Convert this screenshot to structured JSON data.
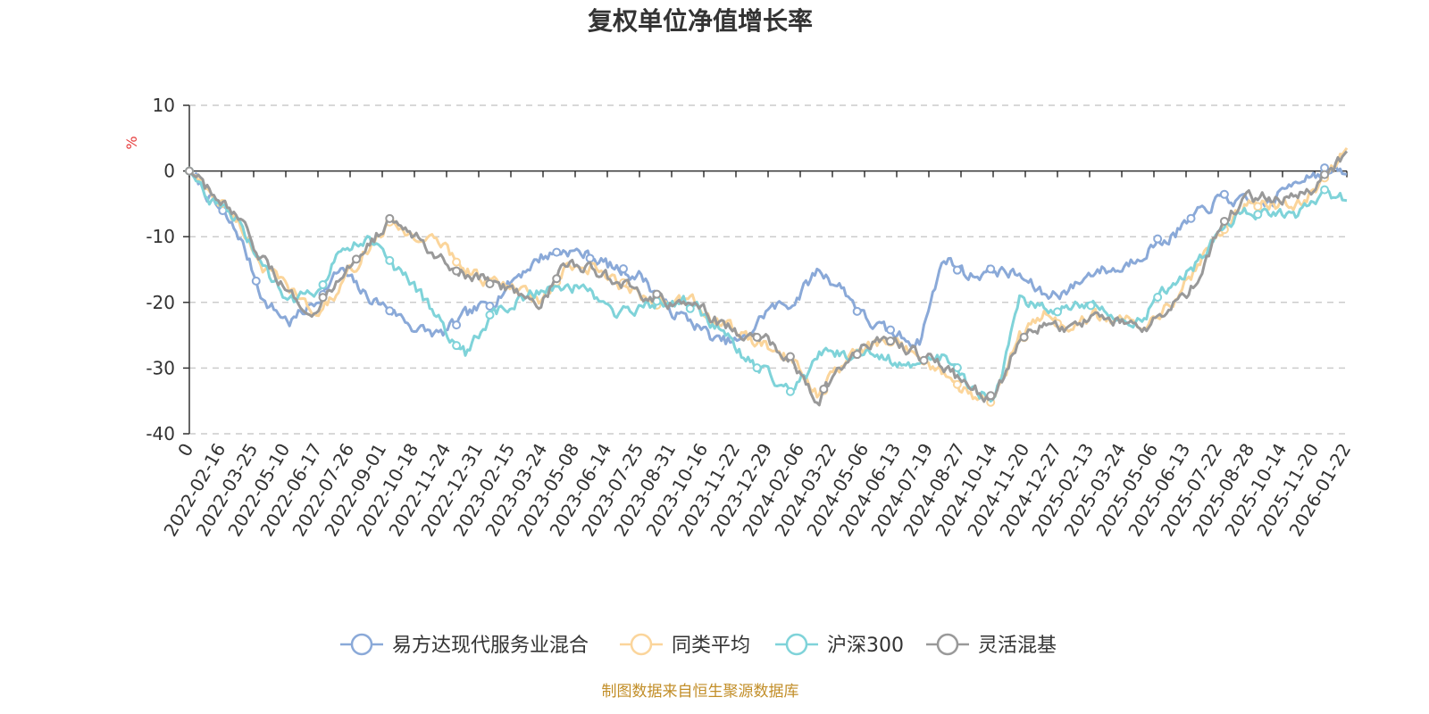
{
  "chart_data": {
    "type": "line",
    "title": "复权单位净值增长率",
    "ylabel": "%",
    "ylim": [
      -40,
      10
    ],
    "yticks": [
      10,
      0,
      -10,
      -20,
      -30,
      -40
    ],
    "xticks": [
      "0",
      "2022-02-16",
      "2022-03-25",
      "2022-05-10",
      "2022-06-17",
      "2022-07-26",
      "2022-09-01",
      "2022-10-18",
      "2022-11-24",
      "2022-12-31",
      "2023-02-15",
      "2023-03-24",
      "2023-05-08",
      "2023-06-14",
      "2023-07-25",
      "2023-08-31",
      "2023-10-16",
      "2023-11-22",
      "2023-12-29",
      "2024-02-06",
      "2024-03-22",
      "2024-05-06",
      "2024-06-13",
      "2024-07-19",
      "2024-08-27",
      "2024-10-14",
      "2024-11-20",
      "2024-12-27",
      "2025-02-13",
      "2025-03-24",
      "2025-05-06",
      "2025-06-13",
      "2025-07-22",
      "2025-08-28",
      "2025-10-14",
      "2025-11-20",
      "2026-01-22"
    ],
    "grid": true,
    "legend_position": "bottom",
    "series": [
      {
        "name": "易方达现代服务业混合",
        "color": "#8aa9d8",
        "values": [
          0,
          -5,
          -10,
          -20,
          -23,
          -20,
          -15,
          -19,
          -21,
          -24,
          -25,
          -22,
          -20,
          -16,
          -13,
          -12,
          -13,
          -15,
          -16,
          -21,
          -23,
          -26,
          -26,
          -21,
          -20,
          -15,
          -18,
          -23,
          -25,
          -26,
          -13,
          -16,
          -15,
          -16,
          -19,
          -18,
          -15,
          -15,
          -12,
          -10,
          -7,
          -4,
          -5,
          -5,
          -1,
          0,
          -0.5
        ]
      },
      {
        "name": "同类平均",
        "color": "#fbd59b",
        "values": [
          0,
          -4,
          -8,
          -15,
          -18,
          -22,
          -18,
          -12,
          -8,
          -10,
          -11,
          -15,
          -17,
          -18,
          -20,
          -15,
          -15,
          -17,
          -19,
          -20,
          -20,
          -23,
          -25,
          -27,
          -29,
          -34,
          -29,
          -27,
          -26,
          -28,
          -31,
          -34,
          -35,
          -25,
          -22,
          -24,
          -22,
          -23,
          -23,
          -20,
          -15,
          -9,
          -5,
          -5,
          -5,
          -2,
          3.5
        ]
      },
      {
        "name": "沪深300",
        "color": "#7fd3d9",
        "values": [
          0,
          -5,
          -8,
          -15,
          -20,
          -18,
          -12,
          -10,
          -14,
          -18,
          -23,
          -28,
          -22,
          -20,
          -18,
          -17,
          -19,
          -22,
          -21,
          -20,
          -20,
          -24,
          -28,
          -31,
          -34,
          -28,
          -28,
          -27,
          -29,
          -30,
          -28,
          -33,
          -35,
          -20,
          -21,
          -20,
          -20,
          -23,
          -22,
          -17,
          -14,
          -9,
          -6,
          -7,
          -7,
          -4,
          -4.5
        ]
      },
      {
        "name": "灵活混基",
        "color": "#999999",
        "values": [
          0,
          -4,
          -8,
          -14,
          -19,
          -21,
          -17,
          -11,
          -8,
          -10,
          -13,
          -16,
          -17,
          -18,
          -20,
          -14,
          -15,
          -17,
          -19,
          -20,
          -20,
          -23,
          -25,
          -26,
          -29,
          -35,
          -29,
          -26,
          -26,
          -28,
          -30,
          -33,
          -35,
          -25,
          -23,
          -24,
          -22,
          -23,
          -24,
          -21,
          -17,
          -8,
          -4,
          -4,
          -4,
          -1.5,
          3
        ]
      }
    ]
  },
  "source_note": "制图数据来自恒生聚源数据库",
  "colors": {
    "unit": "#e63b3b",
    "source": "#c28e28",
    "axis": "#333333",
    "grid": "#cccccc"
  }
}
